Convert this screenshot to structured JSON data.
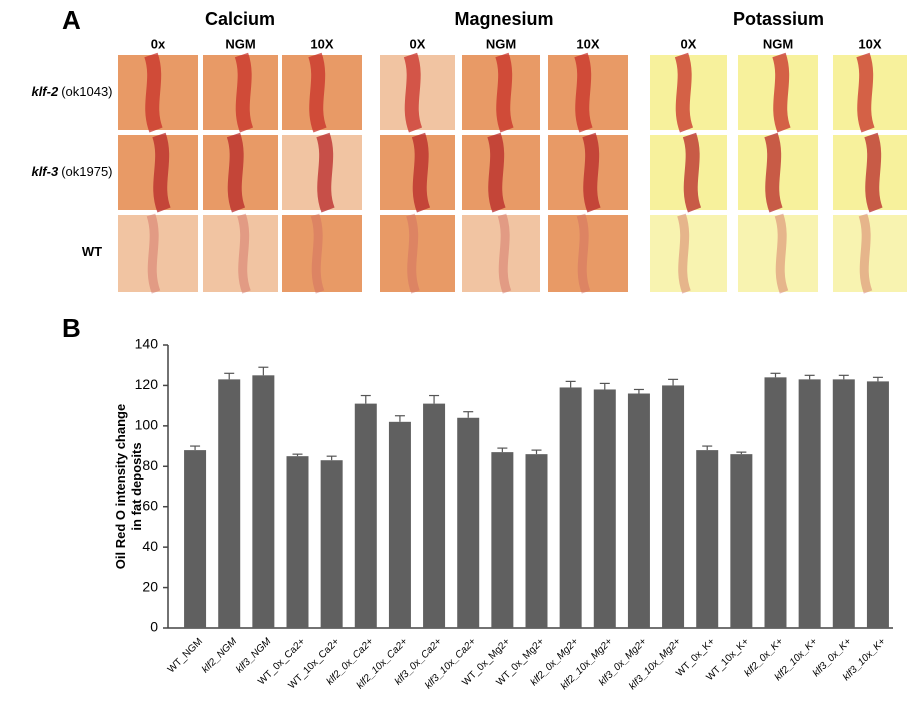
{
  "panel_a": {
    "label": "A",
    "groups": [
      {
        "title": "Calcium",
        "columns": [
          "0x",
          "NGM",
          "10X"
        ]
      },
      {
        "title": "Magnesium",
        "columns": [
          "0X",
          "NGM",
          "10X"
        ]
      },
      {
        "title": "Potassium",
        "columns": [
          "0X",
          "NGM",
          "10X"
        ]
      }
    ],
    "rows": [
      {
        "gene": "klf-2",
        "allele": "(ok1043)"
      },
      {
        "gene": "klf-3",
        "allele": "(ok1975)"
      },
      {
        "gene": "WT"
      }
    ]
  },
  "panel_b": {
    "label": "B"
  },
  "chart_data": {
    "type": "bar",
    "ylabel": [
      "Oil Red O intensity change",
      "in fat deposits"
    ],
    "categories": [
      "WT_NGM",
      "klf2_NGM",
      "klf3_NGM",
      "WT_0x_Ca2+",
      "WT_10x_Ca2+",
      "klf2_0x_Ca2+",
      "klf2_10x_Ca2+",
      "klf3_0x_Ca2+",
      "klf3_10x_Ca2+",
      "WT_0x_Mg2+",
      "WT_0x_Mg2+",
      "klf2_0x_Mg2+",
      "klf2_10x_Mg2+",
      "klf3_0x_Mg2+",
      "klf3_10x_Mg2+",
      "WT_0x_K+",
      "WT_10x_K+",
      "klf2_0x_K+",
      "klf2_10x_K+",
      "klf3_0x_K+",
      "klf3_10x_K+"
    ],
    "values": [
      88,
      123,
      125,
      85,
      83,
      111,
      102,
      111,
      104,
      87,
      86,
      119,
      118,
      116,
      120,
      88,
      86,
      124,
      123,
      123,
      122
    ],
    "errors": [
      2,
      3,
      4,
      1,
      2,
      4,
      3,
      4,
      3,
      2,
      2,
      3,
      3,
      2,
      3,
      2,
      1,
      2,
      2,
      2,
      2
    ],
    "color": "#606060",
    "ylim": [
      0,
      140
    ],
    "yticks": [
      0,
      20,
      40,
      60,
      80,
      100,
      120,
      140
    ]
  }
}
